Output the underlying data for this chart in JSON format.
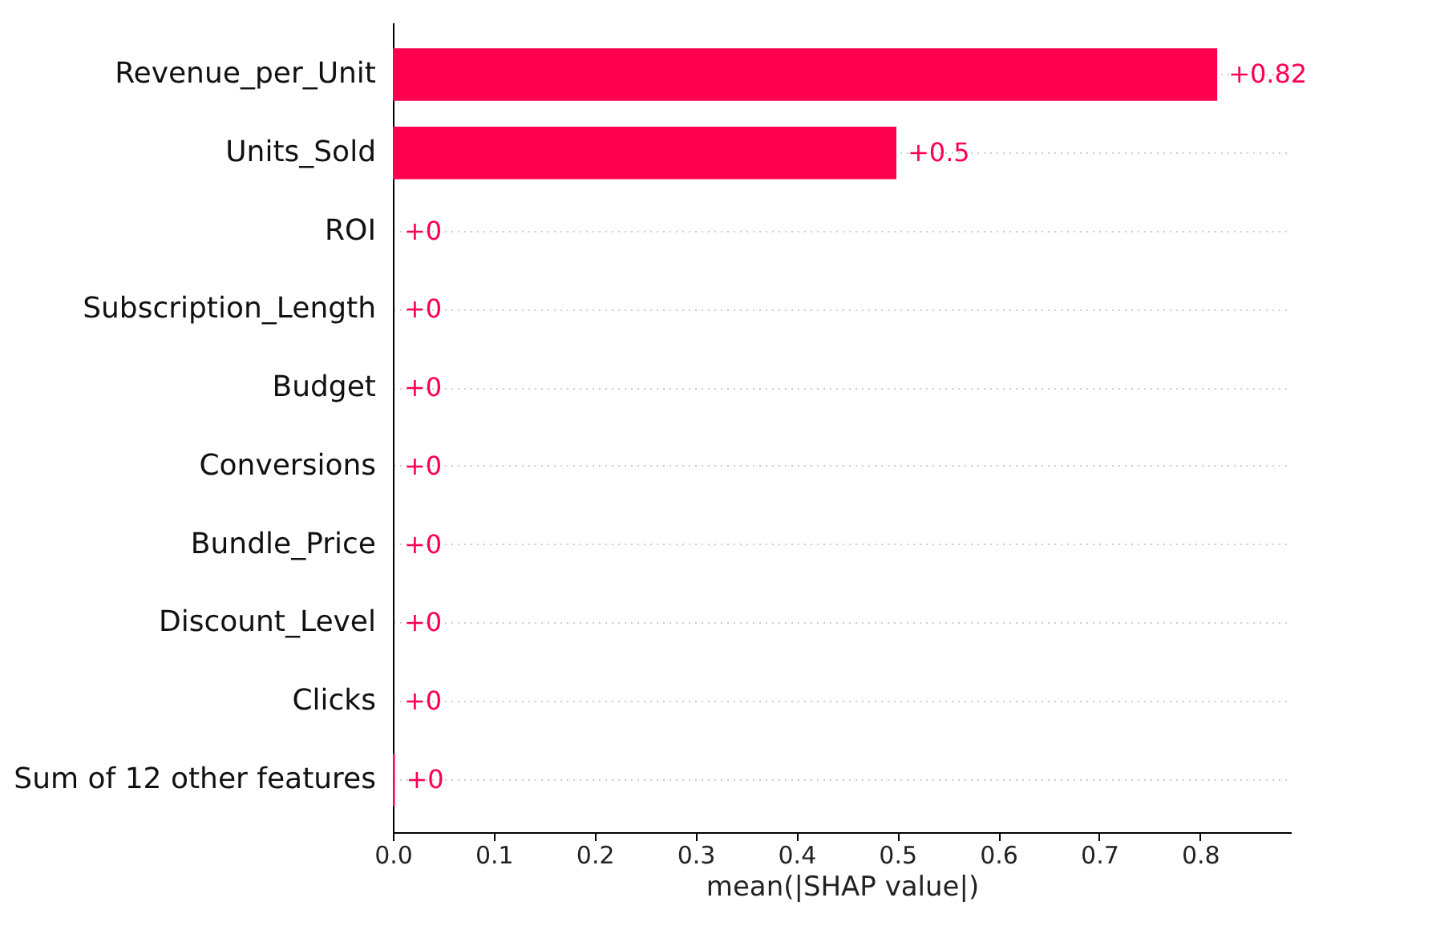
{
  "chart_data": {
    "type": "bar",
    "orientation": "horizontal",
    "xlabel": "mean(|SHAP value|)",
    "categories": [
      "Revenue_per_Unit",
      "Units_Sold",
      "ROI",
      "Subscription_Length",
      "Budget",
      "Conversions",
      "Bundle_Price",
      "Discount_Level",
      "Clicks",
      "Sum of 12 other features"
    ],
    "values": [
      0.817,
      0.499,
      0,
      0,
      0,
      0,
      0,
      0,
      0,
      0.002
    ],
    "value_labels": [
      "+0.82",
      "+0.5",
      "+0",
      "+0",
      "+0",
      "+0",
      "+0",
      "+0",
      "+0",
      "+0"
    ],
    "color": "#ff0051",
    "xlim": [
      0,
      0.89
    ],
    "xticks": [
      {
        "value": 0,
        "label": "0.0"
      },
      0.1,
      0.2,
      0.3,
      0.4,
      0.5,
      0.6,
      0.7,
      0.8
    ],
    "grid": "y",
    "line_style": "dotted"
  }
}
